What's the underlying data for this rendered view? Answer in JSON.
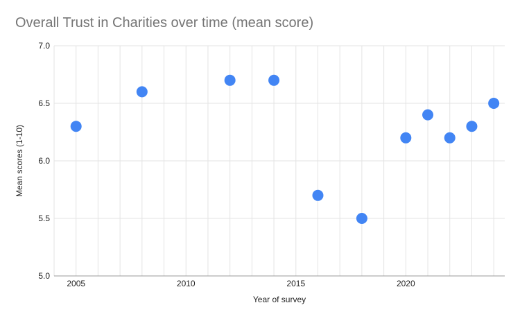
{
  "chart_data": {
    "type": "scatter",
    "title": "Overall Trust in Charities over time (mean score)",
    "xlabel": "Year of survey",
    "ylabel": "Mean scores (1-10)",
    "x": [
      2005,
      2008,
      2012,
      2014,
      2016,
      2018,
      2020,
      2021,
      2022,
      2023,
      2024
    ],
    "y": [
      6.3,
      6.6,
      6.7,
      6.7,
      5.7,
      5.5,
      6.2,
      6.4,
      6.2,
      6.3,
      6.5
    ],
    "xlim": [
      2004,
      2024.5
    ],
    "ylim": [
      5.0,
      7.0
    ],
    "x_ticks": [
      2005,
      2010,
      2015,
      2020
    ],
    "y_ticks": [
      7.0,
      6.5,
      6.0,
      5.5,
      5.0
    ],
    "x_gridline_interval": 1,
    "grid": true,
    "legend_position": "none",
    "series_name": "Overall Trust in Charities"
  },
  "colors": {
    "title": "#757575",
    "point": "#4285f4",
    "gridline": "#e3e3e3",
    "axis_line": "#999999",
    "tick_label": "#222222"
  }
}
